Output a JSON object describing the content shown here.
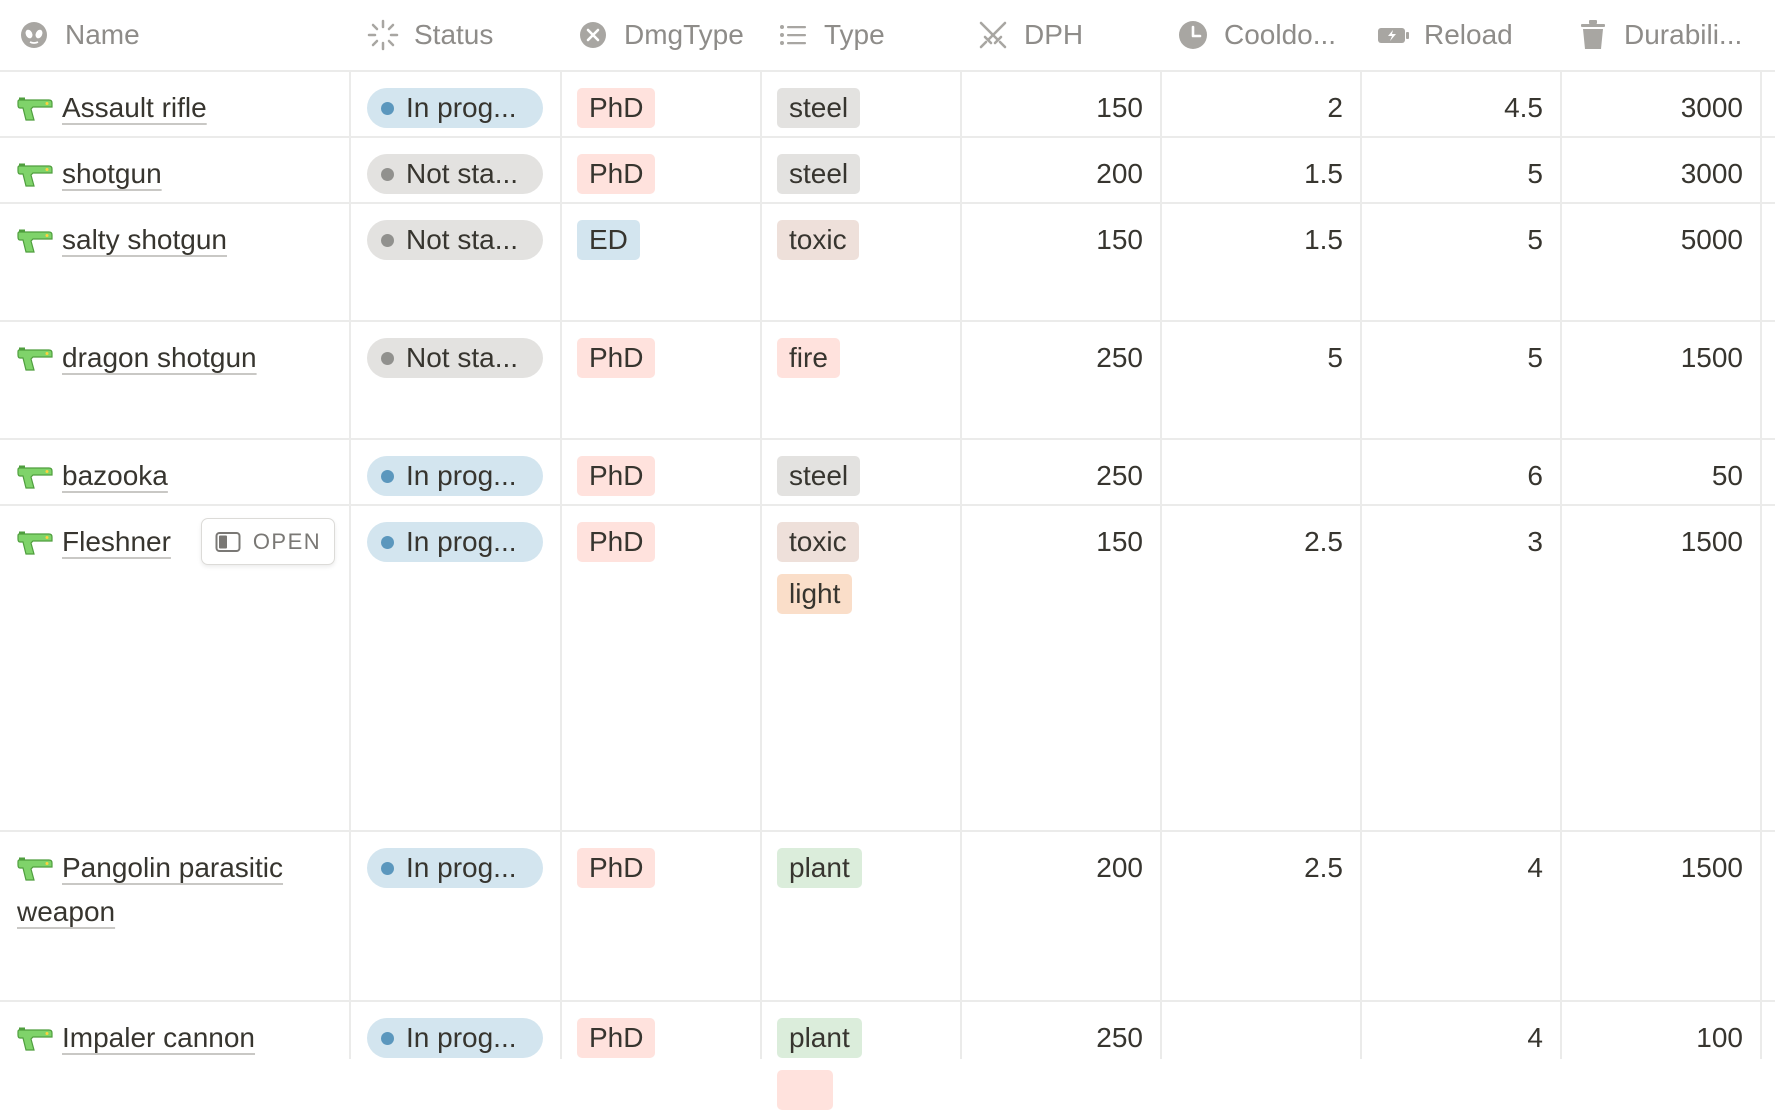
{
  "columns": [
    {
      "key": "name",
      "label": "Name",
      "icon": "alien-icon"
    },
    {
      "key": "status",
      "label": "Status",
      "icon": "loading-sun-icon"
    },
    {
      "key": "dmgtype",
      "label": "DmgType",
      "icon": "x-circle-icon"
    },
    {
      "key": "type",
      "label": "Type",
      "icon": "list-icon"
    },
    {
      "key": "dph",
      "label": "DPH",
      "icon": "crossed-swords-icon"
    },
    {
      "key": "cooldown",
      "label": "Cooldo...",
      "icon": "clock-icon"
    },
    {
      "key": "reload",
      "label": "Reload",
      "icon": "battery-charge-icon"
    },
    {
      "key": "durability",
      "label": "Durabili...",
      "icon": "trash-icon"
    }
  ],
  "open_label": "OPEN",
  "colors": {
    "in_progress_bg": "#d3e5ef",
    "in_progress_dot": "#5b97bd",
    "not_started_bg": "#e3e2e0",
    "not_started_dot": "#91918e",
    "phd_bg": "#ffe2dd",
    "ed_bg": "#d3e5ef",
    "steel_bg": "#e3e2e0",
    "toxic_bg": "#eee0da",
    "fire_bg": "#ffe2dd",
    "light_bg": "#fadec9",
    "plant_bg": "#dbeddb"
  },
  "rows": [
    {
      "name": [
        "Assault rifle"
      ],
      "status": "In prog...",
      "status_kind": "in_progress",
      "dmgtype": "PhD",
      "types": [
        "steel"
      ],
      "dph": "150",
      "cooldown": "2",
      "reload": "4.5",
      "durability": "3000"
    },
    {
      "name": [
        "shotgun"
      ],
      "status": "Not sta...",
      "status_kind": "not_started",
      "dmgtype": "PhD",
      "types": [
        "steel"
      ],
      "dph": "200",
      "cooldown": "1.5",
      "reload": "5",
      "durability": "3000"
    },
    {
      "name": [
        "salty shotgun"
      ],
      "status": "Not sta...",
      "status_kind": "not_started",
      "dmgtype": "ED",
      "types": [
        "toxic"
      ],
      "dph": "150",
      "cooldown": "1.5",
      "reload": "5",
      "durability": "5000"
    },
    {
      "name": [
        "dragon shotgun"
      ],
      "status": "Not sta...",
      "status_kind": "not_started",
      "dmgtype": "PhD",
      "types": [
        "fire"
      ],
      "dph": "250",
      "cooldown": "5",
      "reload": "5",
      "durability": "1500"
    },
    {
      "name": [
        "bazooka"
      ],
      "status": "In prog...",
      "status_kind": "in_progress",
      "dmgtype": "PhD",
      "types": [
        "steel"
      ],
      "dph": "250",
      "cooldown": "",
      "reload": "6",
      "durability": "50"
    },
    {
      "name": [
        "Fleshner"
      ],
      "status": "In prog...",
      "status_kind": "in_progress",
      "dmgtype": "PhD",
      "types": [
        "toxic",
        "light"
      ],
      "dph": "150",
      "cooldown": "2.5",
      "reload": "3",
      "durability": "1500",
      "hover": true
    },
    {
      "name": [
        "Pangolin parasitic",
        "weapon"
      ],
      "status": "In prog...",
      "status_kind": "in_progress",
      "dmgtype": "PhD",
      "types": [
        "plant"
      ],
      "dph": "200",
      "cooldown": "2.5",
      "reload": "4",
      "durability": "1500"
    },
    {
      "name": [
        "Impaler cannon"
      ],
      "status": "In prog...",
      "status_kind": "in_progress",
      "dmgtype": "PhD",
      "types": [
        "plant",
        ""
      ],
      "dph": "250",
      "cooldown": "",
      "reload": "4",
      "durability": "100"
    }
  ]
}
